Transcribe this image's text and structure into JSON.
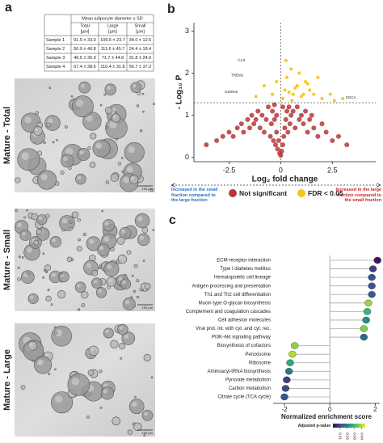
{
  "panel_labels": [
    "a",
    "b",
    "c"
  ],
  "table": {
    "header": "Mean adipocyte diameter ± SD",
    "columns": [
      {
        "name": "Total",
        "unit": "[µm]"
      },
      {
        "name": "Large",
        "unit": "[µm]"
      },
      {
        "name": "Small",
        "unit": "[µm]"
      }
    ],
    "rows": [
      [
        "Sample 1",
        "91.5 ± 33.0",
        "106.5 ± 23.7",
        "34.0 ± 12.6"
      ],
      [
        "Sample 2",
        "50.9 ± 46.8",
        "111.6 ± 45.7",
        "24.4 ± 18.4"
      ],
      [
        "Sample 3",
        "46.5 ± 36.9",
        "71.7 ± 44.8",
        "31.8 ± 24.0"
      ],
      [
        "Sample 4",
        "67.4 ± 38.6",
        "110.4 ± 31.8",
        "56.7 ± 37.2"
      ]
    ]
  },
  "images": [
    {
      "label": "Mature - Total",
      "scale": "100 µm"
    },
    {
      "label": "Mature - Small",
      "scale": "100 µm"
    },
    {
      "label": "Mature - Large",
      "scale": "100 µm"
    }
  ],
  "chart_data": [
    {
      "type": "scatter",
      "x_label": "Log₂ fold change",
      "y_label": "- Log₁₀ P",
      "xlim": [
        -4.2,
        4.6
      ],
      "ylim": [
        -0.1,
        3.2
      ],
      "xticks": [
        -2.5,
        0,
        2.5
      ],
      "yticks": [
        0,
        1,
        2,
        3
      ],
      "hline": 1.3,
      "vline": 0,
      "legend": "bottom",
      "series": [
        {
          "name": "Not significant",
          "color": "#b5383a",
          "x": [
            -3.6,
            -3.1,
            -2.8,
            -2.5,
            -2.3,
            -2.1,
            -1.9,
            -1.8,
            -1.6,
            -1.5,
            -1.4,
            -1.3,
            -1.2,
            -1.1,
            -1.0,
            -0.9,
            -0.8,
            -0.7,
            -0.6,
            -0.5,
            -0.45,
            -0.4,
            -0.35,
            -0.3,
            -0.25,
            -0.2,
            -0.15,
            -0.1,
            -0.05,
            0,
            0.05,
            0.1,
            0.15,
            0.2,
            0.25,
            0.3,
            0.35,
            0.4,
            0.45,
            0.5,
            0.6,
            0.7,
            0.8,
            0.9,
            1.0,
            1.1,
            1.2,
            1.3,
            1.4,
            1.5,
            1.6,
            1.8,
            2.0,
            2.2,
            2.5,
            2.8,
            3.2,
            -0.3,
            -0.2,
            0.1
          ],
          "values": [
            0.3,
            0.4,
            0.5,
            0.6,
            0.5,
            0.7,
            0.8,
            0.6,
            0.9,
            0.7,
            1.0,
            0.8,
            0.9,
            1.1,
            0.7,
            1.0,
            0.6,
            0.9,
            1.2,
            0.5,
            0.8,
            1.1,
            0.4,
            0.9,
            0.3,
            0.6,
            0.2,
            0.4,
            0.1,
            0.05,
            0.15,
            0.3,
            0.5,
            0.7,
            0.9,
            1.1,
            0.6,
            1.2,
            0.8,
            1.0,
            1.1,
            0.7,
            1.2,
            0.9,
            1.0,
            0.8,
            1.1,
            0.6,
            0.9,
            1.0,
            0.7,
            0.5,
            0.8,
            0.6,
            0.4,
            0.5,
            0.3,
            1.25,
            1.0,
            1.2
          ]
        },
        {
          "name": "FDR < 0.05",
          "color": "#f5c518",
          "x": [
            0.1,
            0.2,
            0.3,
            0.5,
            0.6,
            0.8,
            0.9,
            1.0,
            1.2,
            1.4,
            1.6,
            1.8,
            2.0,
            2.4,
            2.6,
            3.0,
            -0.2,
            -0.4,
            -0.8,
            -1.2,
            0.4,
            0.7,
            1.1,
            1.3,
            0.25,
            0.55
          ],
          "values": [
            1.4,
            1.6,
            1.9,
            2.1,
            1.5,
            1.7,
            2.0,
            1.45,
            1.8,
            1.6,
            1.5,
            1.9,
            1.4,
            1.5,
            1.35,
            1.4,
            1.8,
            1.5,
            1.7,
            1.45,
            1.55,
            1.65,
            1.5,
            1.75,
            2.3,
            1.35
          ]
        }
      ],
      "annotations": [
        {
          "text": "CA3",
          "x": -1.9,
          "y": 2.3
        },
        {
          "text": "TREM1",
          "x": -2.1,
          "y": 1.95
        },
        {
          "text": "S100A8",
          "x": -2.4,
          "y": 1.55
        },
        {
          "text": "SGCA",
          "x": 3.4,
          "y": 1.42
        }
      ],
      "notes": {
        "left": "Increased in the small fraction compared to the large fraction",
        "right": "Increased in the large fraction compared to the small fraction"
      }
    },
    {
      "type": "lollipop",
      "x_label": "Normalized enrichment score",
      "categories": [
        "ECM-receptor interaction",
        "Type I diabetes mellitus",
        "Hematopoietic cell lineage",
        "Antigen processing and presentation",
        "Th1 and Th2 cell differentiation",
        "Mucin type O-glycan biosynthesis",
        "Complement and coagulation cascades",
        "Cell adhesion molecules",
        "Viral prot. int. with cyt. and cyt. rec.",
        "PI3K-Akt signaling pathway",
        "Biosynthesis of cofactors",
        "Peroxisome",
        "Ribosome",
        "Aminoacyl-tRNA biosynthesis",
        "Pyruvate metabolism",
        "Carbon metabolism",
        "Citrate cycle (TCA cycle)"
      ],
      "values": [
        2.1,
        1.9,
        1.85,
        1.85,
        1.85,
        1.7,
        1.65,
        1.6,
        1.5,
        1.5,
        -1.55,
        -1.65,
        -1.75,
        -1.8,
        -1.9,
        -1.95,
        -2.0
      ],
      "p_values": [
        0.002,
        0.008,
        0.012,
        0.012,
        0.013,
        0.038,
        0.03,
        0.022,
        0.036,
        0.015,
        0.037,
        0.04,
        0.028,
        0.018,
        0.008,
        0.01,
        0.012
      ],
      "xlim": [
        -2.5,
        2.2
      ],
      "xticks": [
        -2,
        0,
        2
      ],
      "colorbar": {
        "title": "Adjusted p-value",
        "lim": [
          0,
          0.045
        ],
        "ticks": [
          0.01,
          0.02,
          0.03,
          0.04
        ]
      }
    }
  ]
}
